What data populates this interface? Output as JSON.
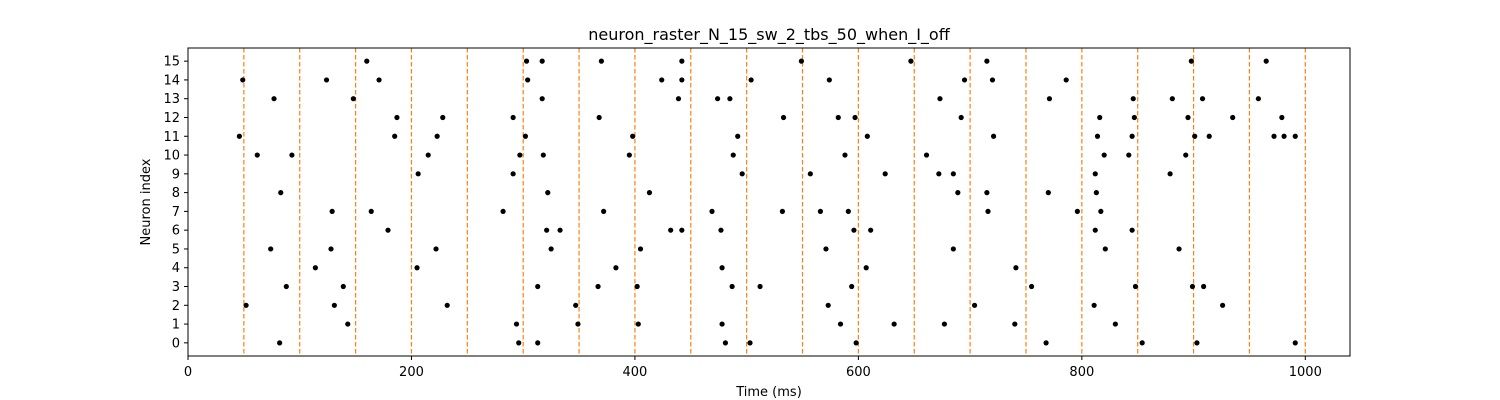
{
  "chart_data": {
    "type": "scatter",
    "title": "neuron_raster_N_15_sw_2_tbs_50_when_I_off",
    "xlabel": "Time (ms)",
    "ylabel": "Neuron index",
    "xlim": [
      0,
      1040
    ],
    "ylim": [
      -0.7,
      15.7
    ],
    "x_ticks": [
      0,
      200,
      400,
      600,
      800,
      1000
    ],
    "y_ticks": [
      0,
      1,
      2,
      3,
      4,
      5,
      6,
      7,
      8,
      9,
      10,
      11,
      12,
      13,
      14,
      15
    ],
    "vlines": [
      50,
      100,
      150,
      200,
      250,
      300,
      350,
      400,
      450,
      500,
      550,
      600,
      650,
      700,
      750,
      800,
      850,
      900,
      950,
      1000
    ],
    "vline_style": "dashed",
    "grid": false,
    "colors": {
      "spike": "#000000",
      "vline": "#ff7f0e"
    },
    "series": [
      {
        "values": [
          [
            82,
            0
          ],
          [
            296,
            0
          ],
          [
            313,
            0
          ],
          [
            481,
            0
          ],
          [
            503,
            0
          ],
          [
            598,
            0
          ],
          [
            768,
            0
          ],
          [
            854,
            0
          ],
          [
            903,
            0
          ],
          [
            991,
            0
          ],
          [
            143,
            1
          ],
          [
            294,
            1
          ],
          [
            349,
            1
          ],
          [
            403,
            1
          ],
          [
            478,
            1
          ],
          [
            584,
            1
          ],
          [
            632,
            1
          ],
          [
            677,
            1
          ],
          [
            740,
            1
          ],
          [
            830,
            1
          ],
          [
            52,
            2
          ],
          [
            131,
            2
          ],
          [
            232,
            2
          ],
          [
            347,
            2
          ],
          [
            573,
            2
          ],
          [
            704,
            2
          ],
          [
            811,
            2
          ],
          [
            926,
            2
          ],
          [
            88,
            3
          ],
          [
            139,
            3
          ],
          [
            313,
            3
          ],
          [
            367,
            3
          ],
          [
            402,
            3
          ],
          [
            487,
            3
          ],
          [
            512,
            3
          ],
          [
            594,
            3
          ],
          [
            755,
            3
          ],
          [
            848,
            3
          ],
          [
            899,
            3
          ],
          [
            909,
            3
          ],
          [
            114,
            4
          ],
          [
            205,
            4
          ],
          [
            383,
            4
          ],
          [
            478,
            4
          ],
          [
            607,
            4
          ],
          [
            741,
            4
          ],
          [
            74,
            5
          ],
          [
            128,
            5
          ],
          [
            222,
            5
          ],
          [
            325,
            5
          ],
          [
            405,
            5
          ],
          [
            571,
            5
          ],
          [
            685,
            5
          ],
          [
            821,
            5
          ],
          [
            887,
            5
          ],
          [
            179,
            6
          ],
          [
            321,
            6
          ],
          [
            333,
            6
          ],
          [
            432,
            6
          ],
          [
            442,
            6
          ],
          [
            477,
            6
          ],
          [
            596,
            6
          ],
          [
            611,
            6
          ],
          [
            812,
            6
          ],
          [
            845,
            6
          ],
          [
            129,
            7
          ],
          [
            164,
            7
          ],
          [
            282,
            7
          ],
          [
            372,
            7
          ],
          [
            469,
            7
          ],
          [
            532,
            7
          ],
          [
            566,
            7
          ],
          [
            591,
            7
          ],
          [
            716,
            7
          ],
          [
            796,
            7
          ],
          [
            817,
            7
          ],
          [
            83,
            8
          ],
          [
            322,
            8
          ],
          [
            413,
            8
          ],
          [
            689,
            8
          ],
          [
            715,
            8
          ],
          [
            770,
            8
          ],
          [
            813,
            8
          ],
          [
            206,
            9
          ],
          [
            291,
            9
          ],
          [
            496,
            9
          ],
          [
            557,
            9
          ],
          [
            624,
            9
          ],
          [
            672,
            9
          ],
          [
            685,
            9
          ],
          [
            812,
            9
          ],
          [
            879,
            9
          ],
          [
            62,
            10
          ],
          [
            93,
            10
          ],
          [
            215,
            10
          ],
          [
            297,
            10
          ],
          [
            318,
            10
          ],
          [
            395,
            10
          ],
          [
            488,
            10
          ],
          [
            588,
            10
          ],
          [
            661,
            10
          ],
          [
            820,
            10
          ],
          [
            842,
            10
          ],
          [
            893,
            10
          ],
          [
            46,
            11
          ],
          [
            185,
            11
          ],
          [
            223,
            11
          ],
          [
            302,
            11
          ],
          [
            398,
            11
          ],
          [
            492,
            11
          ],
          [
            608,
            11
          ],
          [
            721,
            11
          ],
          [
            814,
            11
          ],
          [
            845,
            11
          ],
          [
            901,
            11
          ],
          [
            914,
            11
          ],
          [
            972,
            11
          ],
          [
            981,
            11
          ],
          [
            991,
            11
          ],
          [
            187,
            12
          ],
          [
            228,
            12
          ],
          [
            291,
            12
          ],
          [
            368,
            12
          ],
          [
            533,
            12
          ],
          [
            582,
            12
          ],
          [
            597,
            12
          ],
          [
            692,
            12
          ],
          [
            816,
            12
          ],
          [
            847,
            12
          ],
          [
            895,
            12
          ],
          [
            935,
            12
          ],
          [
            979,
            12
          ],
          [
            77,
            13
          ],
          [
            148,
            13
          ],
          [
            317,
            13
          ],
          [
            439,
            13
          ],
          [
            474,
            13
          ],
          [
            485,
            13
          ],
          [
            673,
            13
          ],
          [
            771,
            13
          ],
          [
            846,
            13
          ],
          [
            881,
            13
          ],
          [
            908,
            13
          ],
          [
            958,
            13
          ],
          [
            49,
            14
          ],
          [
            124,
            14
          ],
          [
            171,
            14
          ],
          [
            304,
            14
          ],
          [
            424,
            14
          ],
          [
            442,
            14
          ],
          [
            504,
            14
          ],
          [
            574,
            14
          ],
          [
            695,
            14
          ],
          [
            720,
            14
          ],
          [
            786,
            14
          ],
          [
            160,
            15
          ],
          [
            303,
            15
          ],
          [
            317,
            15
          ],
          [
            370,
            15
          ],
          [
            442,
            15
          ],
          [
            549,
            15
          ],
          [
            647,
            15
          ],
          [
            715,
            15
          ],
          [
            898,
            15
          ],
          [
            965,
            15
          ]
        ]
      }
    ]
  }
}
